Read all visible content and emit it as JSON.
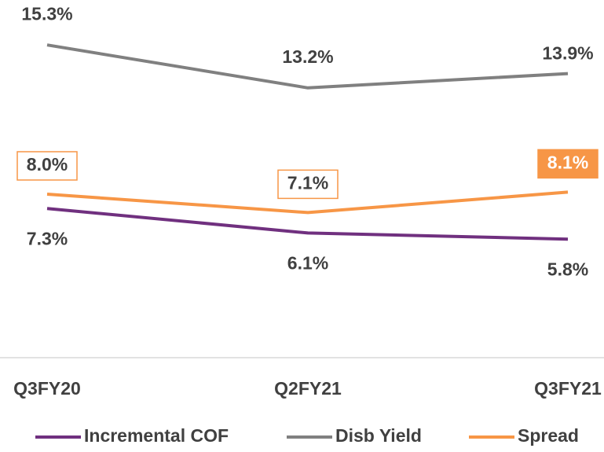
{
  "chart_data": {
    "type": "line",
    "categories": [
      "Q3FY20",
      "Q2FY21",
      "Q3FY21"
    ],
    "series": [
      {
        "name": "Incremental COF",
        "color": "#70307f",
        "values": [
          7.3,
          6.1,
          5.8
        ],
        "value_labels": [
          "7.3%",
          "6.1%",
          "5.8%"
        ]
      },
      {
        "name": "Disb Yield",
        "color": "#808080",
        "values": [
          15.3,
          13.2,
          13.9
        ],
        "value_labels": [
          "15.3%",
          "13.2%",
          "13.9%"
        ]
      },
      {
        "name": "Spread",
        "color": "#f79646",
        "values": [
          8.0,
          7.1,
          8.1
        ],
        "value_labels": [
          "8.0%",
          "7.1%",
          "8.1%"
        ]
      }
    ],
    "ylim": [
      0,
      17.5
    ]
  }
}
